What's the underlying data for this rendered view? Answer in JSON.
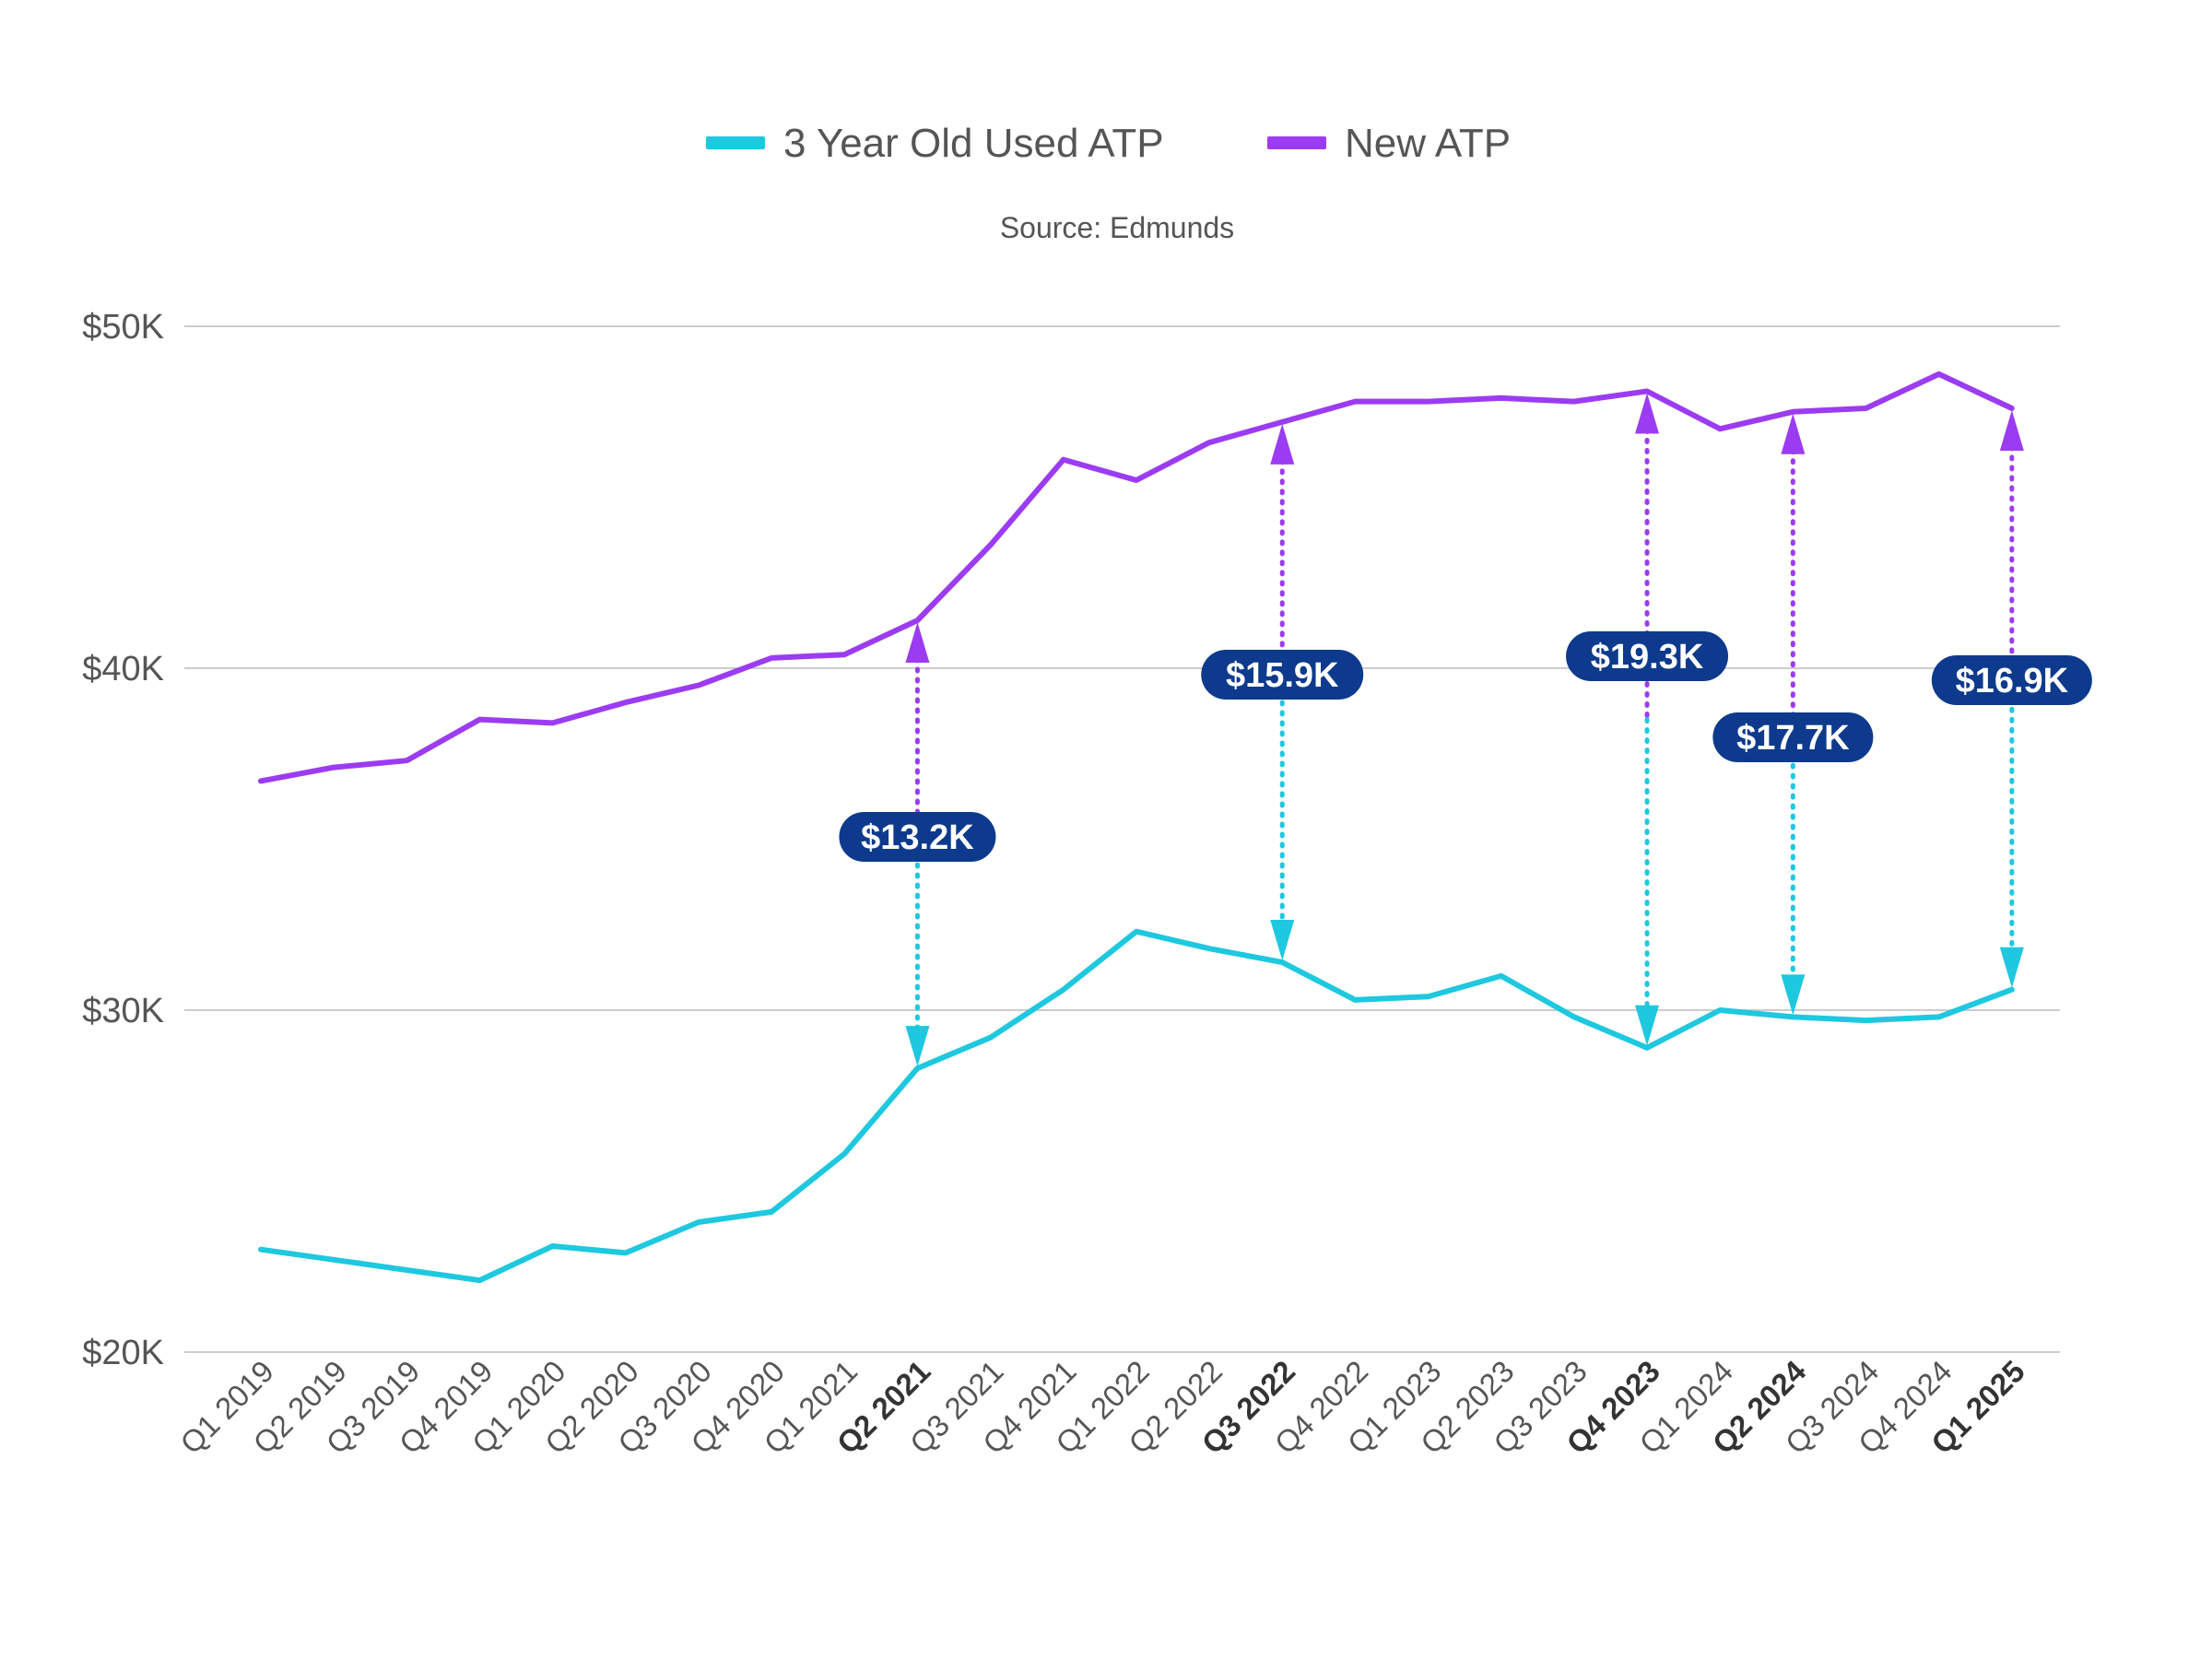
{
  "chart_data": {
    "type": "line",
    "title": "",
    "subtitle": "Source: Edmunds",
    "xlabel": "",
    "ylabel": "",
    "ylim": [
      20000,
      50000
    ],
    "yticks": [
      20000,
      30000,
      40000,
      50000
    ],
    "ytick_labels": [
      "$20K",
      "$30K",
      "$40K",
      "$50K"
    ],
    "grid": true,
    "legend_position": "top-center",
    "categories": [
      "Q1 2019",
      "Q2 2019",
      "Q3 2019",
      "Q4 2019",
      "Q1 2020",
      "Q2 2020",
      "Q3 2020",
      "Q4 2020",
      "Q1 2021",
      "Q2 2021",
      "Q3 2021",
      "Q4 2021",
      "Q1 2022",
      "Q2 2022",
      "Q3 2022",
      "Q4 2022",
      "Q1 2023",
      "Q2 2023",
      "Q3 2023",
      "Q4 2023",
      "Q1 2024",
      "Q2 2024",
      "Q3 2024",
      "Q4 2024",
      "Q1 2025"
    ],
    "bold_categories": [
      "Q2 2021",
      "Q3 2022",
      "Q4 2023",
      "Q2 2024",
      "Q1 2025"
    ],
    "series": [
      {
        "name": "3 Year Old Used ATP",
        "color": "#1ec8df",
        "values": [
          23000,
          22700,
          22400,
          22100,
          23100,
          22900,
          23800,
          24100,
          25800,
          28300,
          29200,
          30600,
          32300,
          31800,
          31400,
          30300,
          30400,
          31000,
          29800,
          28900,
          30000,
          29800,
          29700,
          29800,
          30600
        ]
      },
      {
        "name": "New ATP",
        "color": "#9b3cf2",
        "values": [
          36700,
          37100,
          37300,
          38500,
          38400,
          39000,
          39500,
          40300,
          40400,
          41400,
          43600,
          46100,
          45500,
          46600,
          47200,
          47800,
          47800,
          47900,
          47800,
          48100,
          47000,
          47500,
          47600,
          48600,
          47600
        ]
      }
    ],
    "annotations": [
      {
        "category": "Q2 2021",
        "label": "$13.2K"
      },
      {
        "category": "Q3 2022",
        "label": "$15.9K"
      },
      {
        "category": "Q4 2023",
        "label": "$19.3K"
      },
      {
        "category": "Q2 2024",
        "label": "$17.7K"
      },
      {
        "category": "Q1 2025",
        "label": "$16.9K"
      }
    ],
    "colors": {
      "grid": "#cccccc",
      "pill": "#0d3a8c",
      "pill_text": "#ffffff"
    }
  }
}
